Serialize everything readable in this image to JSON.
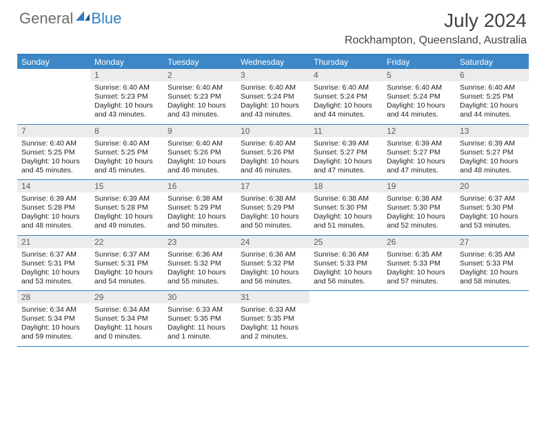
{
  "logo": {
    "general": "General",
    "blue": "Blue"
  },
  "title": "July 2024",
  "subtitle": "Rockhampton, Queensland, Australia",
  "colors": {
    "header_bar": "#3d87c7",
    "border": "#2f7fc2",
    "daynum_bg": "#ececec",
    "text": "#222222",
    "muted": "#5a5a5a",
    "logo_gray": "#6b6b6b",
    "logo_blue": "#2f7fc2",
    "title_color": "#424242"
  },
  "weekdays": [
    "Sunday",
    "Monday",
    "Tuesday",
    "Wednesday",
    "Thursday",
    "Friday",
    "Saturday"
  ],
  "weeks": [
    [
      {
        "n": "",
        "sr": "",
        "ss": "",
        "dl": ""
      },
      {
        "n": "1",
        "sr": "Sunrise: 6:40 AM",
        "ss": "Sunset: 5:23 PM",
        "dl": "Daylight: 10 hours and 43 minutes."
      },
      {
        "n": "2",
        "sr": "Sunrise: 6:40 AM",
        "ss": "Sunset: 5:23 PM",
        "dl": "Daylight: 10 hours and 43 minutes."
      },
      {
        "n": "3",
        "sr": "Sunrise: 6:40 AM",
        "ss": "Sunset: 5:24 PM",
        "dl": "Daylight: 10 hours and 43 minutes."
      },
      {
        "n": "4",
        "sr": "Sunrise: 6:40 AM",
        "ss": "Sunset: 5:24 PM",
        "dl": "Daylight: 10 hours and 44 minutes."
      },
      {
        "n": "5",
        "sr": "Sunrise: 6:40 AM",
        "ss": "Sunset: 5:24 PM",
        "dl": "Daylight: 10 hours and 44 minutes."
      },
      {
        "n": "6",
        "sr": "Sunrise: 6:40 AM",
        "ss": "Sunset: 5:25 PM",
        "dl": "Daylight: 10 hours and 44 minutes."
      }
    ],
    [
      {
        "n": "7",
        "sr": "Sunrise: 6:40 AM",
        "ss": "Sunset: 5:25 PM",
        "dl": "Daylight: 10 hours and 45 minutes."
      },
      {
        "n": "8",
        "sr": "Sunrise: 6:40 AM",
        "ss": "Sunset: 5:25 PM",
        "dl": "Daylight: 10 hours and 45 minutes."
      },
      {
        "n": "9",
        "sr": "Sunrise: 6:40 AM",
        "ss": "Sunset: 5:26 PM",
        "dl": "Daylight: 10 hours and 46 minutes."
      },
      {
        "n": "10",
        "sr": "Sunrise: 6:40 AM",
        "ss": "Sunset: 5:26 PM",
        "dl": "Daylight: 10 hours and 46 minutes."
      },
      {
        "n": "11",
        "sr": "Sunrise: 6:39 AM",
        "ss": "Sunset: 5:27 PM",
        "dl": "Daylight: 10 hours and 47 minutes."
      },
      {
        "n": "12",
        "sr": "Sunrise: 6:39 AM",
        "ss": "Sunset: 5:27 PM",
        "dl": "Daylight: 10 hours and 47 minutes."
      },
      {
        "n": "13",
        "sr": "Sunrise: 6:39 AM",
        "ss": "Sunset: 5:27 PM",
        "dl": "Daylight: 10 hours and 48 minutes."
      }
    ],
    [
      {
        "n": "14",
        "sr": "Sunrise: 6:39 AM",
        "ss": "Sunset: 5:28 PM",
        "dl": "Daylight: 10 hours and 48 minutes."
      },
      {
        "n": "15",
        "sr": "Sunrise: 6:39 AM",
        "ss": "Sunset: 5:28 PM",
        "dl": "Daylight: 10 hours and 49 minutes."
      },
      {
        "n": "16",
        "sr": "Sunrise: 6:38 AM",
        "ss": "Sunset: 5:29 PM",
        "dl": "Daylight: 10 hours and 50 minutes."
      },
      {
        "n": "17",
        "sr": "Sunrise: 6:38 AM",
        "ss": "Sunset: 5:29 PM",
        "dl": "Daylight: 10 hours and 50 minutes."
      },
      {
        "n": "18",
        "sr": "Sunrise: 6:38 AM",
        "ss": "Sunset: 5:30 PM",
        "dl": "Daylight: 10 hours and 51 minutes."
      },
      {
        "n": "19",
        "sr": "Sunrise: 6:38 AM",
        "ss": "Sunset: 5:30 PM",
        "dl": "Daylight: 10 hours and 52 minutes."
      },
      {
        "n": "20",
        "sr": "Sunrise: 6:37 AM",
        "ss": "Sunset: 5:30 PM",
        "dl": "Daylight: 10 hours and 53 minutes."
      }
    ],
    [
      {
        "n": "21",
        "sr": "Sunrise: 6:37 AM",
        "ss": "Sunset: 5:31 PM",
        "dl": "Daylight: 10 hours and 53 minutes."
      },
      {
        "n": "22",
        "sr": "Sunrise: 6:37 AM",
        "ss": "Sunset: 5:31 PM",
        "dl": "Daylight: 10 hours and 54 minutes."
      },
      {
        "n": "23",
        "sr": "Sunrise: 6:36 AM",
        "ss": "Sunset: 5:32 PM",
        "dl": "Daylight: 10 hours and 55 minutes."
      },
      {
        "n": "24",
        "sr": "Sunrise: 6:36 AM",
        "ss": "Sunset: 5:32 PM",
        "dl": "Daylight: 10 hours and 56 minutes."
      },
      {
        "n": "25",
        "sr": "Sunrise: 6:36 AM",
        "ss": "Sunset: 5:33 PM",
        "dl": "Daylight: 10 hours and 56 minutes."
      },
      {
        "n": "26",
        "sr": "Sunrise: 6:35 AM",
        "ss": "Sunset: 5:33 PM",
        "dl": "Daylight: 10 hours and 57 minutes."
      },
      {
        "n": "27",
        "sr": "Sunrise: 6:35 AM",
        "ss": "Sunset: 5:33 PM",
        "dl": "Daylight: 10 hours and 58 minutes."
      }
    ],
    [
      {
        "n": "28",
        "sr": "Sunrise: 6:34 AM",
        "ss": "Sunset: 5:34 PM",
        "dl": "Daylight: 10 hours and 59 minutes."
      },
      {
        "n": "29",
        "sr": "Sunrise: 6:34 AM",
        "ss": "Sunset: 5:34 PM",
        "dl": "Daylight: 11 hours and 0 minutes."
      },
      {
        "n": "30",
        "sr": "Sunrise: 6:33 AM",
        "ss": "Sunset: 5:35 PM",
        "dl": "Daylight: 11 hours and 1 minute."
      },
      {
        "n": "31",
        "sr": "Sunrise: 6:33 AM",
        "ss": "Sunset: 5:35 PM",
        "dl": "Daylight: 11 hours and 2 minutes."
      },
      {
        "n": "",
        "sr": "",
        "ss": "",
        "dl": ""
      },
      {
        "n": "",
        "sr": "",
        "ss": "",
        "dl": ""
      },
      {
        "n": "",
        "sr": "",
        "ss": "",
        "dl": ""
      }
    ]
  ]
}
